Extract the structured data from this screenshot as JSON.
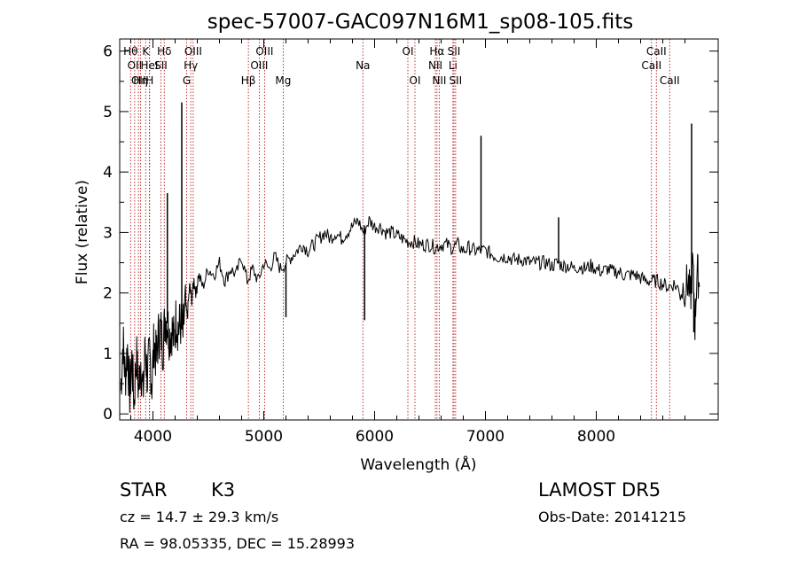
{
  "chart_data": {
    "type": "line",
    "title": "spec-57007-GAC097N16M1_sp08-105.fits",
    "xlabel": "Wavelength (Å)",
    "ylabel": "Flux (relative)",
    "xlim": [
      3700,
      9100
    ],
    "ylim": [
      -0.1,
      6.2
    ],
    "xticks": [
      4000,
      5000,
      6000,
      7000,
      8000
    ],
    "yticks": [
      0,
      1,
      2,
      3,
      4,
      5,
      6
    ],
    "grid": false,
    "line_color": "#000000",
    "marker_color": "#b00000",
    "spectrum": {
      "x": [
        3710,
        3730,
        3750,
        3770,
        3790,
        3810,
        3830,
        3850,
        3870,
        3890,
        3910,
        3930,
        3950,
        3970,
        3990,
        4010,
        4030,
        4050,
        4070,
        4090,
        4110,
        4130,
        4150,
        4170,
        4190,
        4210,
        4230,
        4250,
        4270,
        4290,
        4310,
        4330,
        4350,
        4370,
        4390,
        4410,
        4450,
        4500,
        4550,
        4600,
        4650,
        4700,
        4750,
        4800,
        4850,
        4900,
        4950,
        5000,
        5050,
        5100,
        5150,
        5200,
        5250,
        5300,
        5350,
        5400,
        5450,
        5500,
        5550,
        5600,
        5650,
        5700,
        5750,
        5800,
        5850,
        5900,
        5950,
        6000,
        6050,
        6100,
        6150,
        6200,
        6250,
        6300,
        6350,
        6400,
        6450,
        6500,
        6550,
        6600,
        6650,
        6700,
        6750,
        6800,
        6850,
        6900,
        6950,
        7000,
        7050,
        7100,
        7150,
        7200,
        7250,
        7300,
        7350,
        7400,
        7450,
        7500,
        7550,
        7600,
        7650,
        7700,
        7750,
        7800,
        7850,
        7900,
        7950,
        8000,
        8050,
        8100,
        8150,
        8200,
        8250,
        8300,
        8350,
        8400,
        8450,
        8500,
        8550,
        8600,
        8650,
        8700,
        8750,
        8800,
        8830,
        8850,
        8870,
        8890,
        8910,
        8930
      ],
      "y": [
        0.4,
        1.2,
        0.6,
        1.1,
        0.3,
        0.9,
        0.2,
        1.0,
        0.4,
        0.9,
        0.3,
        1.1,
        0.6,
        1.0,
        0.5,
        1.2,
        0.9,
        1.3,
        1.4,
        1.1,
        1.6,
        1.5,
        1.3,
        1.4,
        1.2,
        1.6,
        1.4,
        1.5,
        1.3,
        1.8,
        1.6,
        2.1,
        1.9,
        2.2,
        2.0,
        2.3,
        2.1,
        2.4,
        2.3,
        2.5,
        2.2,
        2.4,
        2.3,
        2.6,
        2.2,
        2.4,
        2.2,
        2.5,
        2.4,
        2.6,
        2.4,
        2.5,
        2.6,
        2.7,
        2.8,
        2.7,
        2.8,
        2.9,
        3.0,
        2.9,
        3.0,
        2.9,
        3.0,
        3.1,
        3.2,
        3.0,
        3.2,
        3.1,
        3.1,
        3.0,
        3.0,
        2.95,
        2.9,
        2.85,
        2.85,
        2.8,
        2.8,
        2.8,
        2.75,
        2.8,
        2.8,
        2.75,
        2.8,
        2.7,
        2.75,
        2.7,
        2.7,
        2.7,
        2.65,
        2.6,
        2.6,
        2.6,
        2.55,
        2.55,
        2.55,
        2.5,
        2.5,
        2.5,
        2.5,
        2.45,
        2.5,
        2.45,
        2.45,
        2.4,
        2.45,
        2.4,
        2.45,
        2.4,
        2.35,
        2.4,
        2.35,
        2.35,
        2.3,
        2.3,
        2.3,
        2.25,
        2.2,
        2.2,
        2.2,
        2.15,
        2.1,
        2.15,
        2.05,
        2.1,
        2.2,
        1.9,
        2.5,
        1.5,
        2.4,
        2.1
      ],
      "spikes": [
        {
          "x": 4130,
          "y": 3.65
        },
        {
          "x": 4260,
          "y": 5.15
        },
        {
          "x": 5910,
          "y": 1.55
        },
        {
          "x": 5200,
          "y": 1.6
        },
        {
          "x": 6960,
          "y": 4.6
        },
        {
          "x": 7660,
          "y": 3.25
        },
        {
          "x": 8860,
          "y": 4.8
        },
        {
          "x": 8880,
          "y": 1.35
        }
      ]
    },
    "line_markers": [
      {
        "x": 3798,
        "label": "Hθ",
        "row": 1
      },
      {
        "x": 3835,
        "label": "OII",
        "row": 2
      },
      {
        "x": 3869,
        "label": "OII",
        "row": 3
      },
      {
        "x": 3889,
        "label": "Hη",
        "row": 3
      },
      {
        "x": 3934,
        "label": "K",
        "row": 1
      },
      {
        "x": 3970,
        "label": "H",
        "row": 3
      },
      {
        "x": 3968,
        "label": "HeI",
        "row": 2
      },
      {
        "x": 4072,
        "label": "SII",
        "row": 2
      },
      {
        "x": 4102,
        "label": "Hδ",
        "row": 1
      },
      {
        "x": 4304,
        "label": "G",
        "row": 3
      },
      {
        "x": 4341,
        "label": "Hγ",
        "row": 2
      },
      {
        "x": 4363,
        "label": "OIII",
        "row": 1
      },
      {
        "x": 4861,
        "label": "Hβ",
        "row": 3
      },
      {
        "x": 4959,
        "label": "OIII",
        "row": 2
      },
      {
        "x": 5007,
        "label": "OIII",
        "row": 1
      },
      {
        "x": 5175,
        "label": "Mg",
        "row": 3
      },
      {
        "x": 5894,
        "label": "Na",
        "row": 2
      },
      {
        "x": 6300,
        "label": "OI",
        "row": 1
      },
      {
        "x": 6364,
        "label": "OI",
        "row": 3
      },
      {
        "x": 6548,
        "label": "NII",
        "row": 2
      },
      {
        "x": 6563,
        "label": "Hα",
        "row": 1
      },
      {
        "x": 6583,
        "label": "NII",
        "row": 3
      },
      {
        "x": 6707,
        "label": "Li",
        "row": 2
      },
      {
        "x": 6716,
        "label": "SII",
        "row": 1
      },
      {
        "x": 6731,
        "label": "SII",
        "row": 3
      },
      {
        "x": 8498,
        "label": "CaII",
        "row": 2
      },
      {
        "x": 8542,
        "label": "CaII",
        "row": 1
      },
      {
        "x": 8662,
        "label": "CaII",
        "row": 3
      }
    ]
  },
  "info": {
    "object_class": "STAR",
    "subclass": "K3",
    "survey": "LAMOST DR5",
    "cz": "cz = 14.7 ± 29.3 km/s",
    "obs_date": "Obs-Date: 20141215",
    "coords": "RA =  98.05335, DEC =  15.28993"
  }
}
